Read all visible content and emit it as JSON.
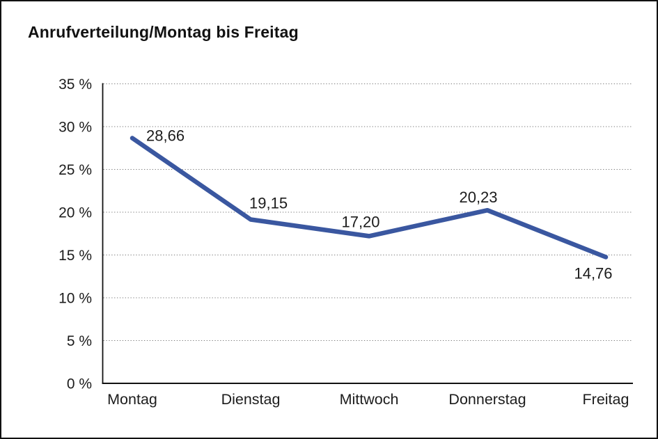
{
  "title": "Anrufverteilung/Montag bis Freitag",
  "chart_data": {
    "type": "line",
    "title": "Anrufverteilung/Montag bis Freitag",
    "categories": [
      "Montag",
      "Dienstag",
      "Mittwoch",
      "Donnerstag",
      "Freitag"
    ],
    "series": [
      {
        "name": "Anrufverteilung",
        "values": [
          28.66,
          19.15,
          17.2,
          20.23,
          14.76
        ]
      }
    ],
    "point_labels": [
      "28,66",
      "19,15",
      "17,20",
      "20,23",
      "14,76"
    ],
    "y_tick_values": [
      35,
      30,
      25,
      20,
      15,
      10,
      5,
      0
    ],
    "y_tick_labels": [
      "35 %",
      "30 %",
      "25 %",
      "20 %",
      "15 %",
      "10 %",
      "5 %",
      "0 %"
    ],
    "ylim": [
      0,
      35
    ],
    "xlabel": "",
    "ylabel": "",
    "grid": "horizontal-dotted",
    "legend": "none",
    "colors": {
      "line": "#3A57A0",
      "axis": "#111111",
      "gridline": "#7a7a7a",
      "text": "#1c1c1c"
    }
  }
}
